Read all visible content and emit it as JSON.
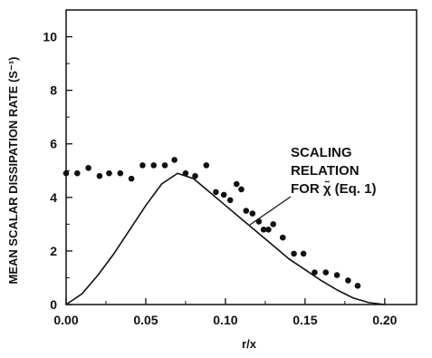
{
  "chart_data": {
    "type": "scatter",
    "title": "",
    "xlabel": "r/x",
    "ylabel": "MEAN SCALAR DISSIPATION RATE (S⁻¹)",
    "xlim": [
      0.0,
      0.22
    ],
    "ylim": [
      0,
      11
    ],
    "x_ticks": [
      "0.00",
      "0.05",
      "0.10",
      "0.15",
      "0.20"
    ],
    "x_tick_values": [
      0.0,
      0.05,
      0.1,
      0.15,
      0.2
    ],
    "y_ticks": [
      "0",
      "2",
      "4",
      "6",
      "8",
      "10"
    ],
    "y_tick_values": [
      0,
      2,
      4,
      6,
      8,
      10
    ],
    "grid": false,
    "annotation": {
      "lines": [
        "SCALING",
        "RELATION",
        "FOR χ̃ (Eq. 1)"
      ]
    },
    "series": [
      {
        "kind": "points",
        "x": [
          0.0,
          0.007,
          0.014,
          0.021,
          0.027,
          0.034,
          0.041,
          0.048,
          0.055,
          0.062,
          0.068,
          0.075,
          0.081,
          0.088,
          0.094,
          0.099,
          0.103,
          0.107,
          0.11,
          0.113,
          0.117,
          0.121,
          0.124,
          0.127,
          0.13,
          0.136,
          0.143,
          0.149,
          0.156,
          0.163,
          0.17,
          0.177,
          0.183
        ],
        "y": [
          4.9,
          4.9,
          5.1,
          4.8,
          4.9,
          4.9,
          4.7,
          5.2,
          5.2,
          5.2,
          5.4,
          4.9,
          4.8,
          5.2,
          4.2,
          4.1,
          3.9,
          4.5,
          4.3,
          3.5,
          3.4,
          3.1,
          2.8,
          2.8,
          3.0,
          2.5,
          1.9,
          1.9,
          1.2,
          1.2,
          1.1,
          0.9,
          0.7
        ]
      },
      {
        "kind": "line",
        "x": [
          0.0,
          0.01,
          0.02,
          0.03,
          0.04,
          0.05,
          0.06,
          0.07,
          0.08,
          0.09,
          0.1,
          0.11,
          0.12,
          0.13,
          0.14,
          0.15,
          0.16,
          0.17,
          0.18,
          0.19,
          0.2
        ],
        "y": [
          0.0,
          0.4,
          1.1,
          1.9,
          2.8,
          3.7,
          4.5,
          4.9,
          4.7,
          4.2,
          3.7,
          3.2,
          2.7,
          2.2,
          1.7,
          1.3,
          0.9,
          0.55,
          0.25,
          0.07,
          0.0
        ]
      }
    ]
  }
}
